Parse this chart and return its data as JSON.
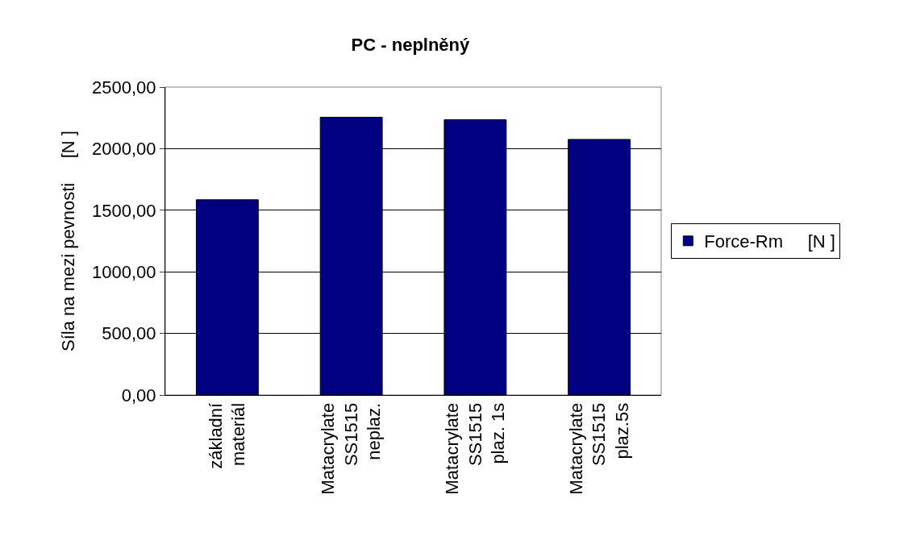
{
  "chart_data": {
    "type": "bar",
    "title": "PC - neplněný",
    "ylabel": "Síla na mezi pevnosti     [N ]",
    "categories": [
      "základní\nmateriál",
      "Matacrylate\nSS1515\nneplaz.",
      "Matacrylate\nSS1515\nplaz. 1s",
      "Matacrylate\nSS1515\nplaz.5s"
    ],
    "series": [
      {
        "name": "Force-Rm     [N ]",
        "color": "#000080",
        "values": [
          1585,
          2255,
          2235,
          2075
        ]
      }
    ],
    "ylim": [
      0,
      2500
    ],
    "yticks": [
      {
        "value": 0,
        "label": "0,00"
      },
      {
        "value": 500,
        "label": "500,00"
      },
      {
        "value": 1000,
        "label": "1000,00"
      },
      {
        "value": 1500,
        "label": "1500,00"
      },
      {
        "value": 2000,
        "label": "2000,00"
      },
      {
        "value": 2500,
        "label": "2500,00"
      }
    ],
    "grid": "y",
    "legend": "right"
  }
}
